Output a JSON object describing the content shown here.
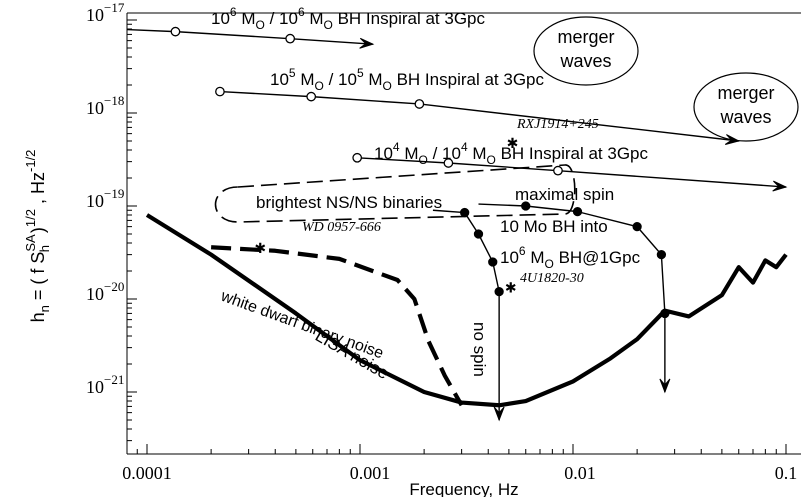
{
  "chart_data": {
    "type": "line",
    "title": "",
    "xlabel": "Frequency, Hz",
    "ylabel": "h_n = ( f S_h^SA )^1/2 , Hz^-1/2",
    "xscale": "log",
    "yscale": "log",
    "xlim": [
      7e-05,
      0.1
    ],
    "ylim": [
      4e-22,
      1e-17
    ],
    "xticks": [
      "0.0001",
      "0.001",
      "0.01",
      "0.1"
    ],
    "yticks": [
      "10^-17",
      "10^-18",
      "10^-19",
      "10^-20",
      "10^-21"
    ],
    "grid": false,
    "series": [
      {
        "name": "LISA noise",
        "style": "thick",
        "x": [
          0.0001,
          0.0002,
          0.0005,
          0.001,
          0.002,
          0.003,
          0.0045,
          0.006,
          0.01,
          0.015,
          0.02,
          0.027,
          0.035,
          0.05,
          0.06,
          0.07,
          0.08,
          0.09,
          0.1
        ],
        "y": [
          8e-20,
          3e-20,
          7e-21,
          2.2e-21,
          1e-21,
          7.7e-22,
          7.2e-22,
          8e-22,
          1.3e-21,
          2.3e-21,
          3.7e-21,
          7.5e-21,
          6.5e-21,
          1.1e-20,
          2.2e-20,
          1.5e-20,
          2.6e-20,
          2.2e-20,
          3e-20
        ]
      },
      {
        "name": "white dwarf binary noise",
        "style": "thick-dashed",
        "x": [
          0.0002,
          0.0004,
          0.0008,
          0.0015,
          0.0018,
          0.0021,
          0.0025,
          0.003
        ],
        "y": [
          3.6e-20,
          3.3e-20,
          2.7e-20,
          1.6e-20,
          1e-20,
          3.5e-21,
          1.5e-21,
          7.2e-22
        ]
      },
      {
        "name": "10^6 Mo / 10^6 Mo BH Inspiral at 3Gpc",
        "style": "arrow",
        "x": [
          7e-05,
          0.000136,
          0.00047,
          0.00115
        ],
        "y": [
          8e-18,
          7.5e-18,
          6.3e-18,
          5.5e-18
        ]
      },
      {
        "name": "10^5 Mo / 10^5 Mo BH Inspiral at 3Gpc",
        "style": "arrow",
        "x": [
          0.00022,
          0.00059,
          0.0019,
          0.06
        ],
        "y": [
          1.7e-18,
          1.5e-18,
          1.25e-18,
          5e-19
        ]
      },
      {
        "name": "10^4 Mo / 10^4 Mo BH Inspiral at 3Gpc",
        "style": "arrow",
        "x": [
          0.00097,
          0.0026,
          0.0085,
          0.1
        ],
        "y": [
          3.3e-19,
          2.9e-19,
          2.4e-19,
          1.6e-19
        ]
      },
      {
        "name": "no spin",
        "style": "arrow",
        "x": [
          0.0022,
          0.0031,
          0.0036,
          0.0042,
          0.0045,
          0.0045
        ],
        "y": [
          9e-20,
          8.5e-20,
          5e-20,
          2.5e-20,
          1.2e-20,
          5e-22
        ]
      },
      {
        "name": "maximal spin",
        "style": "arrow",
        "x": [
          0.0036,
          0.006,
          0.0105,
          0.02,
          0.026,
          0.027,
          0.027
        ],
        "y": [
          1.05e-19,
          1e-19,
          8.7e-20,
          6e-20,
          3e-20,
          7e-21,
          1e-21
        ]
      }
    ],
    "points": [
      {
        "label": "RXJ1914+245",
        "x": 0.0052,
        "y": 5e-19
      },
      {
        "label": "WD 0957-666",
        "x": 0.00034,
        "y": 3.7e-20
      },
      {
        "label": "4U1820-30",
        "x": 0.0051,
        "y": 1.4e-20
      }
    ],
    "annotations": {
      "merger1": [
        "merger",
        "waves"
      ],
      "merger2": [
        "merger",
        "waves"
      ],
      "ns_binaries": "brightest NS/NS binaries",
      "wd_noise": "white dwarf binary noise",
      "lisa_noise": "LISA noise",
      "no_spin": "no spin",
      "max_spin": "maximal spin",
      "bh_into_line1": "10 Mo BH into",
      "bh_into_line2": "10^6 Mo BH@1Gpc",
      "inspiral_suffix": "BH Inspiral at 3Gpc"
    }
  }
}
